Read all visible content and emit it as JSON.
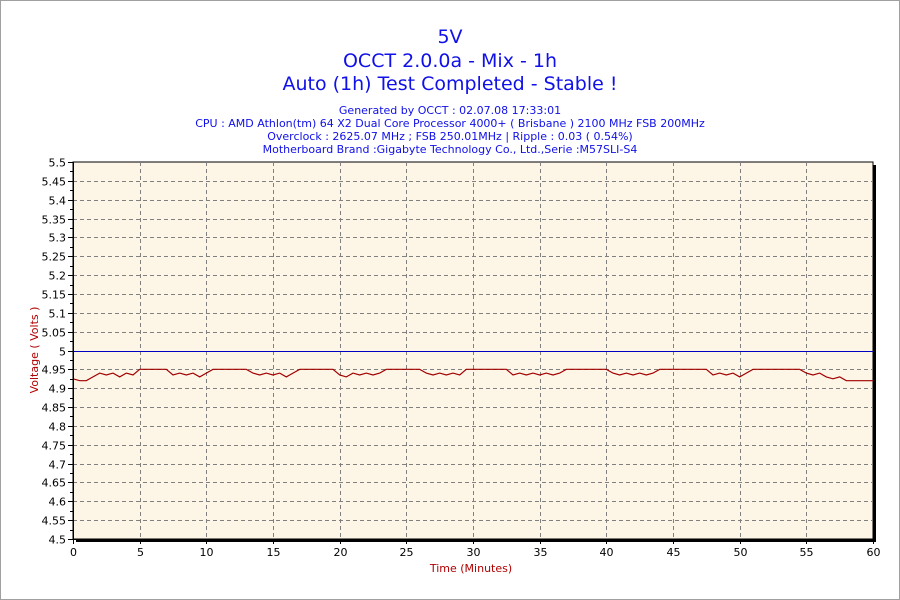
{
  "title": "5V",
  "subtitle": "OCCT 2.0.0a - Mix - 1h",
  "status": "Auto (1h) Test Completed - Stable !",
  "info": [
    "Generated by OCCT : 02.07.08 17:33:01",
    "CPU : AMD Athlon(tm) 64 X2 Dual Core Processor 4000+ ( Brisbane ) 2100 MHz FSB 200MHz",
    "Overclock : 2625.07 MHz ; FSB 250.01MHz | Ripple : 0.03 ( 0.54%)",
    "Motherboard Brand :Gigabyte Technology Co., Ltd.,Serie :M57SLI-S4"
  ],
  "colors": {
    "title": "#1010e8",
    "series": "#a00000",
    "reference": "#0000c0",
    "plot_bg": "#fdf5e6",
    "grid": "#808080"
  },
  "chart_data": {
    "type": "line",
    "xlabel": "Time (Minutes)",
    "ylabel": "Voltage ( Volts )",
    "xlim": [
      0,
      60
    ],
    "ylim": [
      4.5,
      5.5
    ],
    "xticks": [
      "0",
      "5",
      "10",
      "15",
      "20",
      "25",
      "30",
      "35",
      "40",
      "45",
      "50",
      "55",
      "60"
    ],
    "yticks": [
      "4.5",
      "4.55",
      "4.6",
      "4.65",
      "4.7",
      "4.75",
      "4.8",
      "4.85",
      "4.9",
      "4.95",
      "5",
      "5.05",
      "5.1",
      "5.15",
      "5.2",
      "5.25",
      "5.3",
      "5.35",
      "5.4",
      "5.45",
      "5.5"
    ],
    "grid": true,
    "reference_line": 5.0,
    "series": [
      {
        "name": "5V",
        "x_start": 0,
        "x_step": 0.5,
        "values": [
          4.925,
          4.92,
          4.92,
          4.93,
          4.94,
          4.935,
          4.94,
          4.93,
          4.94,
          4.935,
          4.95,
          4.95,
          4.95,
          4.95,
          4.95,
          4.935,
          4.94,
          4.935,
          4.94,
          4.93,
          4.94,
          4.95,
          4.95,
          4.95,
          4.95,
          4.95,
          4.95,
          4.94,
          4.935,
          4.94,
          4.935,
          4.94,
          4.93,
          4.94,
          4.95,
          4.95,
          4.95,
          4.95,
          4.95,
          4.95,
          4.935,
          4.93,
          4.94,
          4.935,
          4.94,
          4.935,
          4.94,
          4.95,
          4.95,
          4.95,
          4.95,
          4.95,
          4.95,
          4.94,
          4.935,
          4.94,
          4.935,
          4.94,
          4.935,
          4.95,
          4.95,
          4.95,
          4.95,
          4.95,
          4.95,
          4.95,
          4.935,
          4.94,
          4.935,
          4.94,
          4.935,
          4.94,
          4.935,
          4.94,
          4.95,
          4.95,
          4.95,
          4.95,
          4.95,
          4.95,
          4.95,
          4.94,
          4.935,
          4.94,
          4.935,
          4.94,
          4.935,
          4.94,
          4.95,
          4.95,
          4.95,
          4.95,
          4.95,
          4.95,
          4.95,
          4.95,
          4.935,
          4.94,
          4.935,
          4.94,
          4.93,
          4.94,
          4.95,
          4.95,
          4.95,
          4.95,
          4.95,
          4.95,
          4.95,
          4.95,
          4.94,
          4.935,
          4.94,
          4.93,
          4.925,
          4.93,
          4.92,
          4.92,
          4.92,
          4.92,
          4.92
        ]
      }
    ]
  }
}
